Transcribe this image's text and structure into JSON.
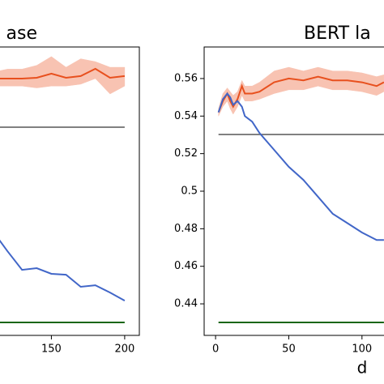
{
  "chart_data": [
    {
      "type": "line",
      "title": "ase",
      "x": [
        114,
        120,
        130,
        140,
        150,
        160,
        170,
        180,
        190,
        200
      ],
      "xlim": [
        114.4,
        210
      ],
      "xticks": [
        150,
        200
      ],
      "ylim": [
        0.4232,
        0.5768
      ],
      "series": [
        {
          "name": "orange",
          "color": "#e8501e",
          "values": [
            0.56,
            0.56,
            0.56,
            0.5604,
            0.5626,
            0.5604,
            0.5613,
            0.5652,
            0.5604,
            0.5613
          ],
          "upper": [
            0.564,
            0.565,
            0.565,
            0.567,
            0.5717,
            0.566,
            0.5705,
            0.569,
            0.566,
            0.566
          ],
          "lower": [
            0.556,
            0.556,
            0.556,
            0.555,
            0.556,
            0.556,
            0.557,
            0.56,
            0.5518,
            0.556
          ],
          "band_color": "#f8c3b2"
        },
        {
          "name": "gray",
          "color": "#808080",
          "values": [
            0.5341,
            0.5341,
            0.5341,
            0.5341,
            0.5341,
            0.5341,
            0.5341,
            0.5341,
            0.5341,
            0.5341
          ]
        },
        {
          "name": "blue",
          "color": "#4166c8",
          "values": [
            0.4745,
            0.4681,
            0.4581,
            0.459,
            0.456,
            0.4555,
            0.4491,
            0.4499,
            0.446,
            0.4417
          ]
        },
        {
          "name": "green",
          "color": "#1a6614",
          "values": [
            0.4301,
            0.4301,
            0.4301,
            0.4301,
            0.4301,
            0.4301,
            0.4301,
            0.4301,
            0.4301,
            0.4301
          ]
        }
      ]
    },
    {
      "type": "line",
      "title": "BERT la",
      "xlabel": "d",
      "x": [
        2,
        5,
        8,
        10,
        12,
        15,
        18,
        20,
        25,
        30,
        40,
        50,
        60,
        70,
        80,
        90,
        100,
        110,
        115
      ],
      "xlim": [
        -7.8,
        115.6
      ],
      "xticks": [
        0,
        50,
        100
      ],
      "ylim": [
        0.4232,
        0.5768
      ],
      "yticks": [
        0.44,
        0.46,
        0.48,
        0.5,
        0.52,
        0.54,
        0.56
      ],
      "series": [
        {
          "name": "orange",
          "color": "#e8501e",
          "values": [
            0.542,
            0.548,
            0.552,
            0.548,
            0.545,
            0.549,
            0.556,
            0.552,
            0.552,
            0.553,
            0.558,
            0.56,
            0.559,
            0.561,
            0.559,
            0.559,
            0.558,
            0.556,
            0.558
          ],
          "upper": [
            0.544,
            0.552,
            0.555,
            0.553,
            0.551,
            0.553,
            0.559,
            0.556,
            0.556,
            0.558,
            0.564,
            0.566,
            0.564,
            0.566,
            0.564,
            0.564,
            0.563,
            0.561,
            0.562
          ],
          "lower": [
            0.54,
            0.545,
            0.548,
            0.544,
            0.541,
            0.545,
            0.551,
            0.548,
            0.548,
            0.549,
            0.552,
            0.554,
            0.554,
            0.556,
            0.554,
            0.554,
            0.553,
            0.551,
            0.553
          ],
          "band_color": "#f8c3b2"
        },
        {
          "name": "gray",
          "color": "#808080",
          "values": [
            0.5302,
            0.5302,
            0.5302,
            0.5302,
            0.5302,
            0.5302,
            0.5302,
            0.5302,
            0.5302,
            0.5302,
            0.5302,
            0.5302,
            0.5302,
            0.5302,
            0.5302,
            0.5302,
            0.5302,
            0.5302,
            0.5302
          ]
        },
        {
          "name": "blue",
          "color": "#4166c8",
          "values": [
            0.542,
            0.549,
            0.552,
            0.55,
            0.546,
            0.548,
            0.545,
            0.54,
            0.537,
            0.531,
            0.522,
            0.513,
            0.506,
            0.497,
            0.488,
            0.483,
            0.478,
            0.474,
            0.474
          ]
        },
        {
          "name": "green",
          "color": "#1a6614",
          "values": [
            0.4301,
            0.4301,
            0.4301,
            0.4301,
            0.4301,
            0.4301,
            0.4301,
            0.4301,
            0.4301,
            0.4301,
            0.4301,
            0.4301,
            0.4301,
            0.4301,
            0.4301,
            0.4301,
            0.4301,
            0.4301,
            0.4301
          ]
        }
      ]
    }
  ]
}
